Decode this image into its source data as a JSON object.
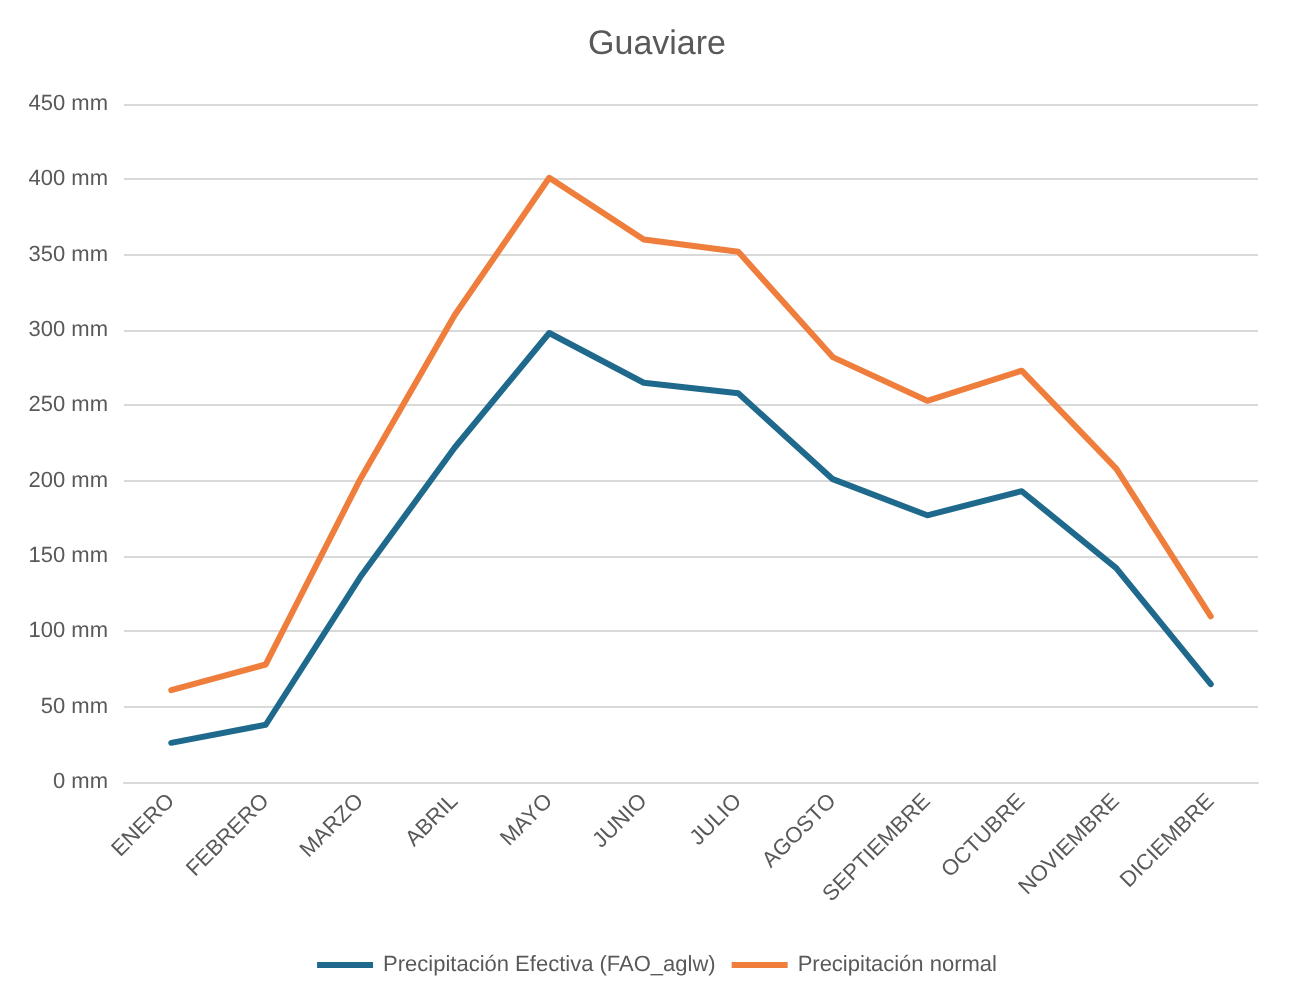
{
  "chart_data": {
    "type": "line",
    "title": "Guaviare",
    "categories": [
      "ENERO",
      "FEBRERO",
      "MARZO",
      "ABRIL",
      "MAYO",
      "JUNIO",
      "JULIO",
      "AGOSTO",
      "SEPTIEMBRE",
      "OCTUBRE",
      "NOVIEMBRE",
      "DICIEMBRE"
    ],
    "series": [
      {
        "name": "Precipitación Efectiva (FAO_aglw)",
        "color": "#1f6a8c",
        "values": [
          26,
          38,
          136,
          222,
          298,
          265,
          258,
          201,
          177,
          193,
          142,
          65
        ]
      },
      {
        "name": "Precipitación normal",
        "color": "#ef7d3c",
        "values": [
          61,
          78,
          201,
          310,
          401,
          360,
          352,
          282,
          253,
          273,
          208,
          110
        ]
      }
    ],
    "ylim": [
      0,
      450
    ],
    "yticks": [
      {
        "value": 0,
        "label": "0 mm"
      },
      {
        "value": 50,
        "label": "50 mm"
      },
      {
        "value": 100,
        "label": "100 mm"
      },
      {
        "value": 150,
        "label": "150 mm"
      },
      {
        "value": 200,
        "label": "200 mm"
      },
      {
        "value": 250,
        "label": "250 mm"
      },
      {
        "value": 300,
        "label": "300 mm"
      },
      {
        "value": 350,
        "label": "350 mm"
      },
      {
        "value": 400,
        "label": "400 mm"
      },
      {
        "value": 450,
        "label": "450 mm"
      }
    ],
    "grid": "y",
    "legend": "bottom",
    "marker": "none",
    "line_style": "solid"
  }
}
